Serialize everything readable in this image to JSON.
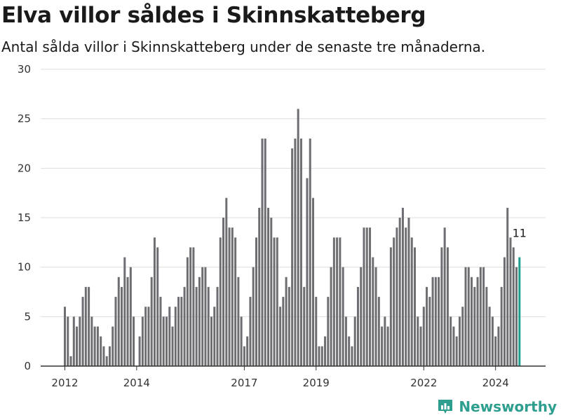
{
  "header": {
    "title": "Elva villor såldes i Skinnskatteberg",
    "subtitle": "Antal sålda villor i Skinnskatteberg under de senaste tre månaderna."
  },
  "brand": {
    "name": "Newsworthy",
    "icon": "newsworthy-logo-icon",
    "color": "#2e9e8f"
  },
  "colors": {
    "bar": "#6e6d72",
    "highlight": "#1f9e8e",
    "grid": "#dddddd",
    "axis": "#333333"
  },
  "chart_data": {
    "type": "bar",
    "title": "Elva villor såldes i Skinnskatteberg",
    "subtitle": "Antal sålda villor i Skinnskatteberg under de senaste tre månaderna.",
    "xlabel": "",
    "ylabel": "",
    "ylim": [
      0,
      30
    ],
    "yticks": [
      0,
      5,
      10,
      15,
      20,
      25,
      30
    ],
    "xticks": [
      "2012",
      "2014",
      "2017",
      "2019",
      "2022",
      "2024"
    ],
    "grid": true,
    "legend": "none",
    "series": [
      {
        "values": [
          6,
          5,
          1,
          5,
          4,
          5,
          7,
          8,
          8,
          5,
          4,
          4,
          3,
          2,
          1,
          2,
          4,
          7,
          9,
          8,
          11,
          9,
          10,
          5,
          0,
          3,
          5,
          6,
          6,
          9,
          13,
          12,
          7,
          5,
          5,
          6,
          4,
          6,
          7,
          7,
          8,
          11,
          12,
          12,
          8,
          9,
          10,
          10,
          8,
          5,
          6,
          8,
          13,
          15,
          17,
          14,
          14,
          13,
          9,
          5,
          2,
          3,
          7,
          10,
          13,
          16,
          23,
          23,
          16,
          15,
          13,
          13,
          6,
          7,
          9,
          8,
          22,
          23,
          26,
          23,
          8,
          19,
          23,
          17,
          7,
          2,
          2,
          3,
          7,
          10,
          13,
          13,
          13,
          10,
          5,
          3,
          2,
          5,
          8,
          10,
          14,
          14,
          14,
          11,
          10,
          7,
          4,
          5,
          4,
          12,
          13,
          14,
          15,
          16,
          14,
          15,
          13,
          12,
          5,
          4,
          6,
          8,
          7,
          9,
          9,
          9,
          12,
          14,
          12,
          5,
          4,
          3,
          5,
          6,
          10,
          10,
          9,
          8,
          9,
          10,
          10,
          8,
          6,
          5,
          3,
          4,
          8,
          11,
          16,
          13,
          12,
          10,
          11
        ]
      }
    ],
    "last_value_label": "11"
  }
}
